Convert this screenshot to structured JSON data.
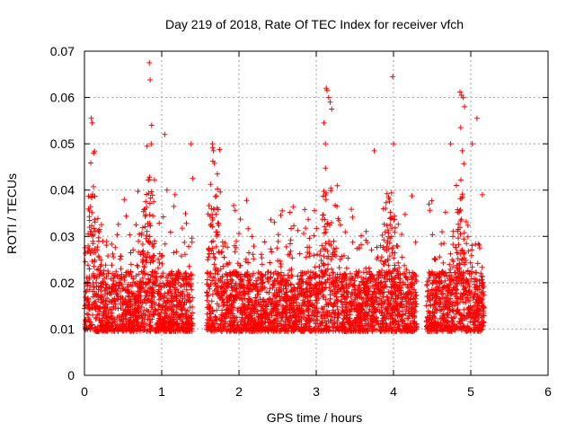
{
  "chart_data": {
    "type": "scatter",
    "title": "Day 219 of 2018, Rate Of TEC Index for receiver vfch",
    "xlabel": "GPS time / hours",
    "ylabel": "ROTI / TECUs",
    "xlim": [
      0,
      6
    ],
    "ylim": [
      0,
      0.07
    ],
    "xticks": [
      0,
      1,
      2,
      3,
      4,
      5,
      6
    ],
    "xtick_labels": [
      "0",
      "1",
      "2",
      "3",
      "4",
      "5",
      "6"
    ],
    "yticks": [
      0,
      0.01,
      0.02,
      0.03,
      0.04,
      0.05,
      0.06,
      0.07
    ],
    "ytick_labels": [
      "0",
      "0.01",
      "0.02",
      "0.03",
      "0.04",
      "0.05",
      "0.06",
      "0.07"
    ],
    "grid": true,
    "marker": "+",
    "color": "#ff0000",
    "data_coverage": [
      [
        0.0,
        1.4
      ],
      [
        1.58,
        4.3
      ],
      [
        4.42,
        5.17
      ]
    ],
    "highlight_points": [
      {
        "x": 0.09,
        "y": 0.0555
      },
      {
        "x": 0.1,
        "y": 0.0545
      },
      {
        "x": 0.12,
        "y": 0.048
      },
      {
        "x": 0.81,
        "y": 0.0495
      },
      {
        "x": 0.84,
        "y": 0.0675
      },
      {
        "x": 0.85,
        "y": 0.0638
      },
      {
        "x": 0.87,
        "y": 0.054
      },
      {
        "x": 1.04,
        "y": 0.052
      },
      {
        "x": 1.38,
        "y": 0.05
      },
      {
        "x": 1.4,
        "y": 0.0425
      },
      {
        "x": 1.67,
        "y": 0.0485
      },
      {
        "x": 3.13,
        "y": 0.062
      },
      {
        "x": 3.14,
        "y": 0.0615
      },
      {
        "x": 3.16,
        "y": 0.06
      },
      {
        "x": 3.18,
        "y": 0.059
      },
      {
        "x": 3.2,
        "y": 0.0575
      },
      {
        "x": 3.1,
        "y": 0.0545
      },
      {
        "x": 3.75,
        "y": 0.0485
      },
      {
        "x": 3.99,
        "y": 0.0645
      },
      {
        "x": 4.0,
        "y": 0.05
      },
      {
        "x": 4.74,
        "y": 0.05
      },
      {
        "x": 4.86,
        "y": 0.0612
      },
      {
        "x": 4.88,
        "y": 0.0605
      },
      {
        "x": 4.9,
        "y": 0.06
      },
      {
        "x": 4.92,
        "y": 0.058
      },
      {
        "x": 4.87,
        "y": 0.0535
      },
      {
        "x": 5.02,
        "y": 0.05
      },
      {
        "x": 5.08,
        "y": 0.0555
      },
      {
        "x": 5.15,
        "y": 0.039
      }
    ],
    "baseline_range": [
      0.006,
      0.045
    ],
    "peak_hours": [
      0.1,
      0.82,
      1.68,
      3.15,
      3.95,
      4.88
    ]
  }
}
